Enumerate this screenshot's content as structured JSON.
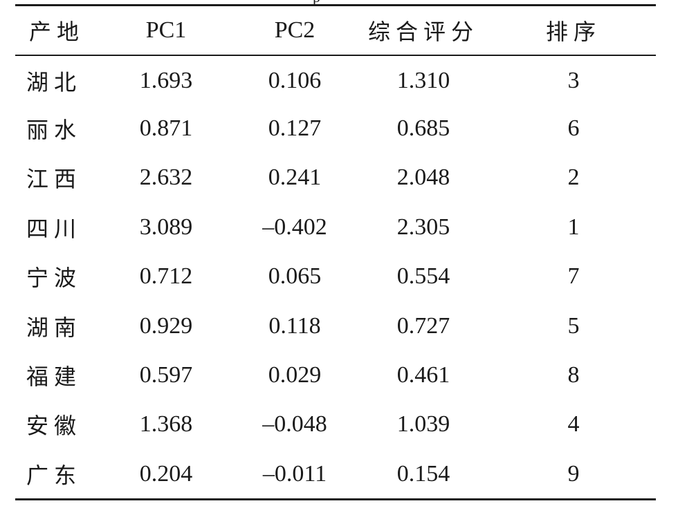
{
  "top_fragment": "p",
  "table": {
    "headers": [
      "产地",
      "PC1",
      "PC2",
      "综合评分",
      "排序"
    ],
    "rows": [
      [
        "湖北",
        "1.693",
        "0.106",
        "1.310",
        "3"
      ],
      [
        "丽水",
        "0.871",
        "0.127",
        "0.685",
        "6"
      ],
      [
        "江西",
        "2.632",
        "0.241",
        "2.048",
        "2"
      ],
      [
        "四川",
        "3.089",
        "–0.402",
        "2.305",
        "1"
      ],
      [
        "宁波",
        "0.712",
        "0.065",
        "0.554",
        "7"
      ],
      [
        "湖南",
        "0.929",
        "0.118",
        "0.727",
        "5"
      ],
      [
        "福建",
        "0.597",
        "0.029",
        "0.461",
        "8"
      ],
      [
        "安徽",
        "1.368",
        "–0.048",
        "1.039",
        "4"
      ],
      [
        "广东",
        "0.204",
        "–0.011",
        "0.154",
        "9"
      ]
    ]
  }
}
